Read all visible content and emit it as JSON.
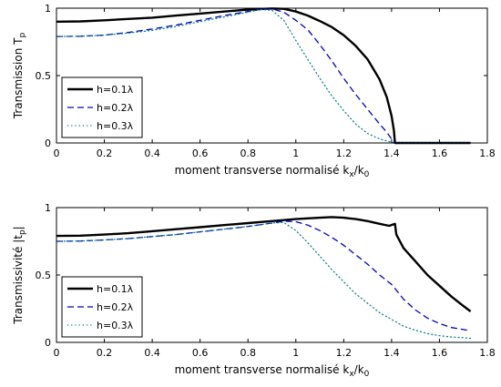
{
  "chart_data": [
    {
      "type": "line",
      "xlabel": "moment transverse normalisé k",
      "xlabel_sub1": "x",
      "xlabel_mid": "/k",
      "xlabel_sub2": "0",
      "ylabel": "Transmission T",
      "ylabel_sub": "p",
      "xlim": [
        0,
        1.8
      ],
      "ylim": [
        0,
        1
      ],
      "xticks": [
        "0",
        "0.2",
        "0.4",
        "0.6",
        "0.8",
        "1",
        "1.2",
        "1.4",
        "1.6",
        "1.8"
      ],
      "yticks": [
        "0",
        "0.5",
        "1"
      ],
      "grid": false,
      "legend_position": "bottom-left",
      "series": [
        {
          "name": "h=0.1λ",
          "style": "solid",
          "color": "#000000",
          "x": [
            0,
            0.1,
            0.2,
            0.3,
            0.4,
            0.5,
            0.6,
            0.7,
            0.8,
            0.9,
            0.95,
            1.0,
            1.05,
            1.1,
            1.15,
            1.2,
            1.25,
            1.3,
            1.35,
            1.38,
            1.4,
            1.41,
            1.414,
            1.45,
            1.5,
            1.6,
            1.73
          ],
          "y": [
            0.9,
            0.902,
            0.91,
            0.92,
            0.93,
            0.945,
            0.96,
            0.975,
            0.99,
            0.998,
            0.995,
            0.975,
            0.945,
            0.905,
            0.86,
            0.8,
            0.72,
            0.62,
            0.47,
            0.34,
            0.2,
            0.09,
            0.0,
            0.0,
            0.0,
            0.0,
            0.0
          ]
        },
        {
          "name": "h=0.2λ",
          "style": "dashed",
          "color": "#0000cc",
          "x": [
            0,
            0.1,
            0.2,
            0.3,
            0.4,
            0.5,
            0.6,
            0.7,
            0.8,
            0.85,
            0.9,
            0.95,
            1.0,
            1.05,
            1.1,
            1.15,
            1.2,
            1.25,
            1.3,
            1.35,
            1.38,
            1.4,
            1.414,
            1.45,
            1.5,
            1.6,
            1.73
          ],
          "y": [
            0.79,
            0.792,
            0.8,
            0.82,
            0.845,
            0.875,
            0.91,
            0.945,
            0.975,
            0.99,
            0.995,
            0.97,
            0.91,
            0.84,
            0.73,
            0.61,
            0.48,
            0.36,
            0.25,
            0.14,
            0.08,
            0.03,
            0.0,
            0.0,
            0.0,
            0.0,
            0.0
          ]
        },
        {
          "name": "h=0.3λ",
          "style": "dotted",
          "color": "#008080",
          "x": [
            0,
            0.1,
            0.2,
            0.3,
            0.4,
            0.5,
            0.6,
            0.7,
            0.8,
            0.85,
            0.9,
            0.95,
            1.0,
            1.05,
            1.1,
            1.15,
            1.2,
            1.25,
            1.3,
            1.35,
            1.38,
            1.414,
            1.45,
            1.5,
            1.6,
            1.73
          ],
          "y": [
            0.79,
            0.792,
            0.8,
            0.815,
            0.835,
            0.865,
            0.9,
            0.935,
            0.97,
            0.99,
            0.985,
            0.91,
            0.76,
            0.62,
            0.48,
            0.35,
            0.24,
            0.14,
            0.07,
            0.03,
            0.015,
            0.0,
            0.0,
            0.0,
            0.0,
            0.0
          ]
        }
      ]
    },
    {
      "type": "line",
      "xlabel": "moment transverse normalisé k",
      "xlabel_sub1": "x",
      "xlabel_mid": "/k",
      "xlabel_sub2": "0",
      "ylabel": "Transmissivité |t",
      "ylabel_sub": "p",
      "ylabel_end": "|",
      "xlim": [
        0,
        1.8
      ],
      "ylim": [
        0,
        1
      ],
      "xticks": [
        "0",
        "0.2",
        "0.4",
        "0.6",
        "0.8",
        "1",
        "1.2",
        "1.4",
        "1.6",
        "1.8"
      ],
      "yticks": [
        "0",
        "0.5",
        "1"
      ],
      "grid": false,
      "legend_position": "bottom-left",
      "series": [
        {
          "name": "h=0.1λ",
          "style": "solid",
          "color": "#000000",
          "x": [
            0,
            0.1,
            0.2,
            0.3,
            0.4,
            0.5,
            0.6,
            0.7,
            0.8,
            0.9,
            1.0,
            1.1,
            1.15,
            1.2,
            1.25,
            1.3,
            1.35,
            1.39,
            1.414,
            1.42,
            1.45,
            1.5,
            1.55,
            1.6,
            1.65,
            1.7,
            1.73
          ],
          "y": [
            0.79,
            0.792,
            0.8,
            0.81,
            0.825,
            0.84,
            0.855,
            0.87,
            0.885,
            0.9,
            0.915,
            0.925,
            0.93,
            0.925,
            0.915,
            0.9,
            0.88,
            0.865,
            0.88,
            0.8,
            0.7,
            0.6,
            0.5,
            0.42,
            0.34,
            0.27,
            0.23
          ]
        },
        {
          "name": "h=0.2λ",
          "style": "dashed",
          "color": "#0000cc",
          "x": [
            0,
            0.1,
            0.2,
            0.3,
            0.4,
            0.5,
            0.6,
            0.7,
            0.8,
            0.9,
            0.95,
            1.0,
            1.05,
            1.1,
            1.15,
            1.2,
            1.25,
            1.3,
            1.35,
            1.4,
            1.414,
            1.45,
            1.5,
            1.55,
            1.6,
            1.65,
            1.7,
            1.73
          ],
          "y": [
            0.75,
            0.752,
            0.76,
            0.77,
            0.785,
            0.8,
            0.82,
            0.84,
            0.86,
            0.885,
            0.9,
            0.895,
            0.87,
            0.83,
            0.78,
            0.72,
            0.65,
            0.58,
            0.5,
            0.43,
            0.4,
            0.32,
            0.24,
            0.18,
            0.14,
            0.11,
            0.095,
            0.085
          ]
        },
        {
          "name": "h=0.3λ",
          "style": "dotted",
          "color": "#008080",
          "x": [
            0,
            0.1,
            0.2,
            0.3,
            0.4,
            0.5,
            0.6,
            0.7,
            0.8,
            0.9,
            0.95,
            1.0,
            1.05,
            1.1,
            1.15,
            1.2,
            1.25,
            1.3,
            1.35,
            1.4,
            1.45,
            1.5,
            1.55,
            1.6,
            1.65,
            1.7,
            1.73
          ],
          "y": [
            0.75,
            0.752,
            0.76,
            0.77,
            0.785,
            0.8,
            0.82,
            0.84,
            0.86,
            0.885,
            0.89,
            0.83,
            0.74,
            0.64,
            0.54,
            0.45,
            0.36,
            0.29,
            0.22,
            0.17,
            0.12,
            0.09,
            0.065,
            0.05,
            0.04,
            0.035,
            0.03
          ]
        }
      ]
    }
  ]
}
